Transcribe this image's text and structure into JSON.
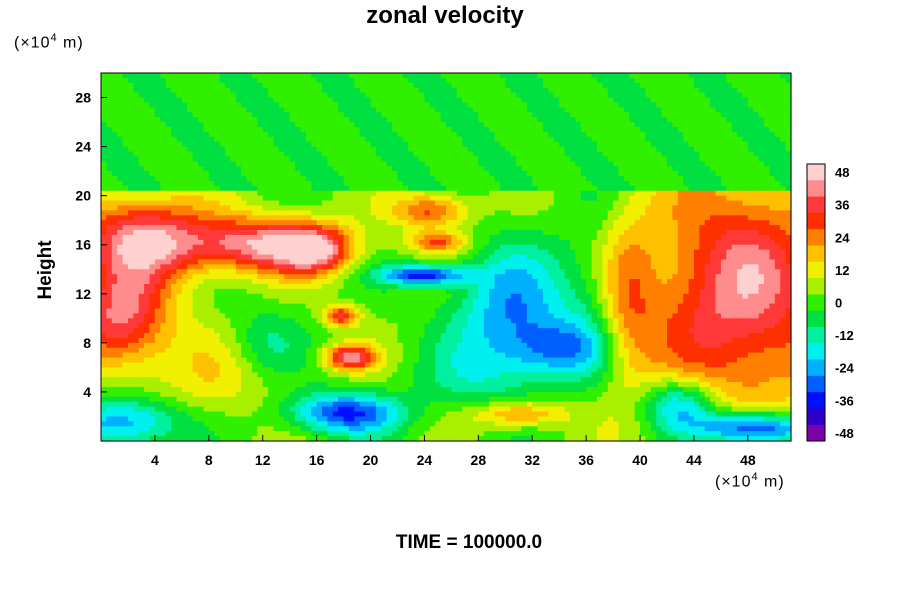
{
  "chart_data": {
    "type": "heatmap",
    "title": "zonal velocity",
    "ylabel": "Height",
    "footer": "TIME = 100000.0",
    "x_unit": {
      "prefix": "(×10",
      "exp": "4",
      "suffix": " m)"
    },
    "y_unit": {
      "prefix": "(×10",
      "exp": "4",
      "suffix": " m)"
    },
    "xlim": [
      0,
      51.2
    ],
    "ylim": [
      0,
      30
    ],
    "xticks": [
      4,
      8,
      12,
      16,
      20,
      24,
      28,
      32,
      36,
      40,
      44,
      48
    ],
    "yticks": [
      4,
      8,
      12,
      16,
      20,
      24,
      28
    ],
    "colorbar": {
      "ticks": [
        48,
        36,
        24,
        12,
        0,
        -12,
        -24,
        -36,
        -48
      ],
      "range": [
        -51,
        51
      ],
      "colors": [
        "#7a00a8",
        "#2b00c8",
        "#0010ff",
        "#0060ff",
        "#00b0ff",
        "#00f0f0",
        "#00f0a0",
        "#00e040",
        "#30f000",
        "#a8f000",
        "#f0f000",
        "#ffc000",
        "#ff8000",
        "#ff3000",
        "#ff3838",
        "#ff8c8c",
        "#ffd0d0"
      ]
    },
    "features": [
      {
        "x": 3,
        "y": 16.5,
        "v": 40,
        "sx": 3.5,
        "sy": 2.5
      },
      {
        "x": 12,
        "y": 16,
        "v": 42,
        "sx": 4,
        "sy": 1.6
      },
      {
        "x": 1.5,
        "y": 10,
        "v": 38,
        "sx": 2.5,
        "sy": 2.8
      },
      {
        "x": 16,
        "y": 15.5,
        "v": 30,
        "sx": 1.8,
        "sy": 1.3
      },
      {
        "x": 24.5,
        "y": 18.8,
        "v": 28,
        "sx": 2,
        "sy": 1
      },
      {
        "x": 25,
        "y": 16.2,
        "v": 24,
        "sx": 1.5,
        "sy": 0.6
      },
      {
        "x": 24,
        "y": 13.5,
        "v": -40,
        "sx": 2.2,
        "sy": 0.6
      },
      {
        "x": 30.5,
        "y": 10.5,
        "v": -28,
        "sx": 3,
        "sy": 3.5
      },
      {
        "x": 34,
        "y": 7.5,
        "v": -22,
        "sx": 2.5,
        "sy": 1.6
      },
      {
        "x": 18.5,
        "y": 6.8,
        "v": 38,
        "sx": 1.3,
        "sy": 0.7
      },
      {
        "x": 17.8,
        "y": 10.2,
        "v": 32,
        "sx": 0.9,
        "sy": 0.6
      },
      {
        "x": 18,
        "y": 2.3,
        "v": -36,
        "sx": 3,
        "sy": 1.2
      },
      {
        "x": 2,
        "y": 1.5,
        "v": -30,
        "sx": 3,
        "sy": 1.5
      },
      {
        "x": 47.5,
        "y": 12,
        "v": 40,
        "sx": 5,
        "sy": 7
      },
      {
        "x": 48.5,
        "y": 1,
        "v": -48,
        "sx": 3,
        "sy": 1
      },
      {
        "x": 43,
        "y": 3,
        "v": -30,
        "sx": 2,
        "sy": 1.5
      },
      {
        "x": 31,
        "y": 2.2,
        "v": 24,
        "sx": 2.5,
        "sy": 0.8
      },
      {
        "x": 39,
        "y": 11,
        "v": 18,
        "sx": 1.5,
        "sy": 5
      },
      {
        "x": 36.5,
        "y": 12,
        "v": -10,
        "sx": 1.8,
        "sy": 5
      },
      {
        "x": 8,
        "y": 5,
        "v": 10,
        "sx": 4,
        "sy": 3
      },
      {
        "x": 12,
        "y": 8,
        "v": -12,
        "sx": 2,
        "sy": 2
      },
      {
        "x": 28,
        "y": 5,
        "v": -10,
        "sx": 3,
        "sy": 2
      }
    ]
  }
}
